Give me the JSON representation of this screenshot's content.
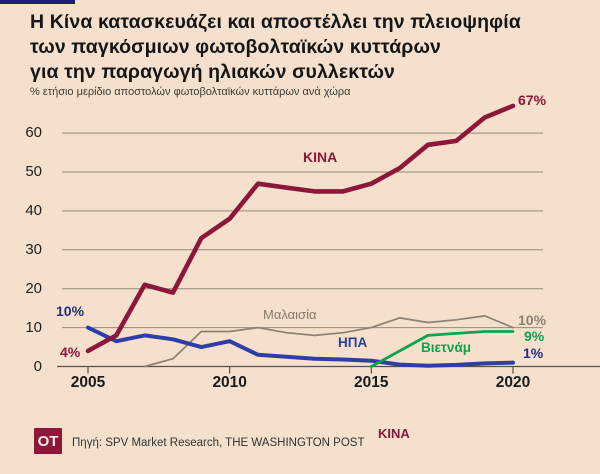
{
  "title_lines": [
    "Η Κίνα κατασκευάζει και αποστέλλει την πλειοψηφία",
    "των παγκόσμιων φωτοβολταϊκών κυττάρων",
    "για την παραγωγή ηλιακών συλλεκτών"
  ],
  "subtitle": "% ετήσιο μερίδιο αποστολών φωτοβολταϊκών κυττάρων ανά χώρα",
  "footer": {
    "logo": "OT",
    "source": "Πηγή: SPV Market Research, THE WASHINGTON POST",
    "legend_china": "ΚΙΝΑ"
  },
  "colors": {
    "background": "#f4e0cc",
    "china": "#8c1738",
    "usa": "#2e3ea6",
    "usa_label": "#25307f",
    "malaysia": "#8b8174",
    "malaysia_label": "#837b6d",
    "vietnam": "#0aa350",
    "grid": "#96897a",
    "axis": "#55504a",
    "navy_bar": "#1c1e7a"
  },
  "chart_data": {
    "type": "line",
    "title": "Η Κίνα κατασκευάζει και αποστέλλει την πλειοψηφία των παγκόσμιων φωτοβολταϊκών κυττάρων για την παραγωγή ηλιακών συλλεκτών",
    "ylabel": "% ετήσιο μερίδιο αποστολών φωτοβολταϊκών κυττάρων ανά χώρα",
    "grid": true,
    "ylim": [
      0,
      70
    ],
    "x": [
      2005,
      2006,
      2007,
      2008,
      2009,
      2010,
      2011,
      2012,
      2013,
      2014,
      2015,
      2016,
      2017,
      2018,
      2019,
      2020
    ],
    "x_ticks": [
      "2005",
      "2010",
      "2015",
      "2020"
    ],
    "y_ticks": [
      "0",
      "10",
      "20",
      "30",
      "40",
      "50",
      "60"
    ],
    "series": [
      {
        "name": "Μαλαισία",
        "color_key": "malaysia",
        "values": [
          null,
          null,
          0,
          2,
          9,
          9,
          10,
          8.7,
          8,
          8.7,
          10,
          12.5,
          11.3,
          12,
          13,
          10
        ],
        "end_label": "10%"
      },
      {
        "name": "ΗΠΑ",
        "color_key": "usa",
        "values": [
          10,
          6.5,
          8,
          7,
          5,
          6.5,
          3,
          2.5,
          2,
          1.8,
          1.5,
          0.5,
          0.2,
          0.4,
          0.8,
          1
        ],
        "start_label": "10%",
        "end_label": "1%"
      },
      {
        "name": "Βιετνάμ",
        "color_key": "vietnam",
        "values": [
          null,
          null,
          null,
          null,
          null,
          null,
          null,
          null,
          null,
          null,
          0,
          4,
          8,
          8.5,
          9,
          9
        ],
        "end_label": "9%"
      },
      {
        "name": "ΚΙΝΑ",
        "color_key": "china",
        "values": [
          4,
          8,
          21,
          19,
          33,
          38,
          47,
          46,
          45,
          45,
          47,
          51,
          57,
          58,
          64,
          67
        ],
        "start_label": "4%",
        "end_label": "67%"
      }
    ]
  }
}
